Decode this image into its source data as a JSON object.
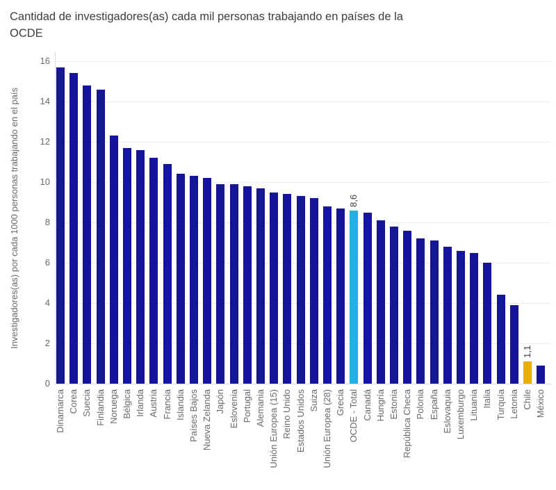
{
  "title": "Cantidad de investigadores(as) cada mil personas trabajando en países de la OCDE",
  "chart_data": {
    "type": "bar",
    "title": "Cantidad de investigadores(as) cada mil personas trabajando en países de la OCDE",
    "xlabel": "",
    "ylabel": "Investigadores(as) por cada 1000 personas trabajando en el país",
    "ylim": [
      0,
      16
    ],
    "yticks": [
      0,
      2,
      4,
      6,
      8,
      10,
      12,
      14,
      16
    ],
    "grid": true,
    "legend": false,
    "categories": [
      "Dinamarca",
      "Corea",
      "Suecia",
      "Finlandia",
      "Noruega",
      "Bélgica",
      "Irlanda",
      "Austria",
      "Francia",
      "Islandia",
      "Países Bajos",
      "Nueva Zelanda",
      "Japón",
      "Eslovenia",
      "Portugal",
      "Alemania",
      "Unión Europea (15)",
      "Reino Unido",
      "Estados Unidos",
      "Suiza",
      "Unión Europea (28)",
      "Grecia",
      "OCDE - Total",
      "Canadá",
      "Hungría",
      "Estonia",
      "República Checa",
      "Polonia",
      "España",
      "Eslovaquia",
      "Luxemburgo",
      "Lituania",
      "Italia",
      "Turquía",
      "Letonia",
      "Chile",
      "México"
    ],
    "values": [
      15.7,
      15.4,
      14.8,
      14.6,
      12.3,
      11.7,
      11.6,
      11.2,
      10.9,
      10.4,
      10.3,
      10.2,
      9.9,
      9.9,
      9.8,
      9.7,
      9.5,
      9.4,
      9.3,
      9.2,
      8.8,
      8.7,
      8.6,
      8.5,
      8.1,
      7.8,
      7.6,
      7.2,
      7.1,
      6.8,
      6.6,
      6.5,
      6.0,
      4.4,
      3.9,
      1.1,
      0.9
    ],
    "bar_color_default": "#15159C",
    "highlighted_bars": [
      {
        "category": "OCDE - Total",
        "color": "#23AEE4",
        "label": "8,6"
      },
      {
        "category": "Chile",
        "color": "#E9AA14",
        "label": "1,1"
      }
    ]
  }
}
